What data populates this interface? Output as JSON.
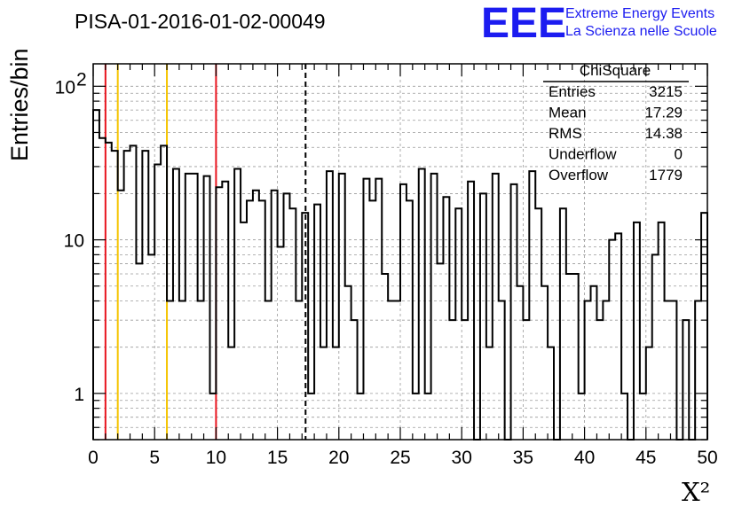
{
  "title": "PISA-01-2016-01-02-00049",
  "logo": {
    "mark": "EEE",
    "line1": "Extreme Energy Events",
    "line2": "La Scienza nelle Scuole",
    "color": "#1c1cf0"
  },
  "stats": {
    "header": "ChiSquare",
    "rows": [
      {
        "label": "Entries",
        "value": "3215"
      },
      {
        "label": "Mean",
        "value": "17.29"
      },
      {
        "label": "RMS",
        "value": "14.38"
      },
      {
        "label": "Underflow",
        "value": "0"
      },
      {
        "label": "Overflow",
        "value": "1779"
      }
    ]
  },
  "chart_data": {
    "type": "histogram",
    "title": "PISA-01-2016-01-02-00049",
    "xlabel": "X²",
    "ylabel": "Entries/bin",
    "xlim": [
      0,
      50
    ],
    "ylim": [
      0.5,
      140
    ],
    "yscale": "log",
    "grid": true,
    "bin_width": 0.5,
    "x_ticks": [
      "0",
      "5",
      "10",
      "15",
      "20",
      "25",
      "30",
      "35",
      "40",
      "45",
      "50"
    ],
    "y_ticks": [
      {
        "value": 1,
        "base": "1",
        "exp": ""
      },
      {
        "value": 10,
        "base": "10",
        "exp": ""
      },
      {
        "value": 100,
        "base": "10",
        "exp": "2"
      }
    ],
    "values": [
      70,
      46,
      43,
      38,
      21,
      38,
      41,
      7,
      38,
      8,
      31,
      41,
      4,
      29,
      4,
      27,
      27,
      4,
      26,
      1,
      22,
      24,
      2,
      29,
      13,
      18,
      21,
      18,
      4,
      21,
      9,
      20,
      16,
      4,
      15,
      1,
      17,
      2,
      28,
      2,
      27,
      5,
      3,
      1,
      25,
      18,
      25,
      6,
      4,
      4,
      23,
      18,
      1,
      29,
      1,
      27,
      7,
      19,
      3,
      16,
      3,
      24,
      0.5,
      20,
      2,
      27,
      4,
      0.5,
      23,
      5,
      3,
      28,
      16,
      5,
      2,
      0.5,
      16,
      6,
      6,
      1,
      4,
      5,
      3,
      4,
      10,
      11,
      1,
      0.5,
      13,
      1,
      2,
      8,
      13,
      4,
      4,
      0.5,
      3,
      0.5,
      4,
      15
    ],
    "lines": [
      {
        "x": 1,
        "color": "#e8141e",
        "style": "solid"
      },
      {
        "x": 2,
        "color": "#f5c400",
        "style": "solid"
      },
      {
        "x": 6,
        "color": "#f5c400",
        "style": "solid"
      },
      {
        "x": 10,
        "color": "#e8141e",
        "style": "solid"
      },
      {
        "x": 17.29,
        "color": "#000000",
        "style": "dashed"
      }
    ]
  }
}
